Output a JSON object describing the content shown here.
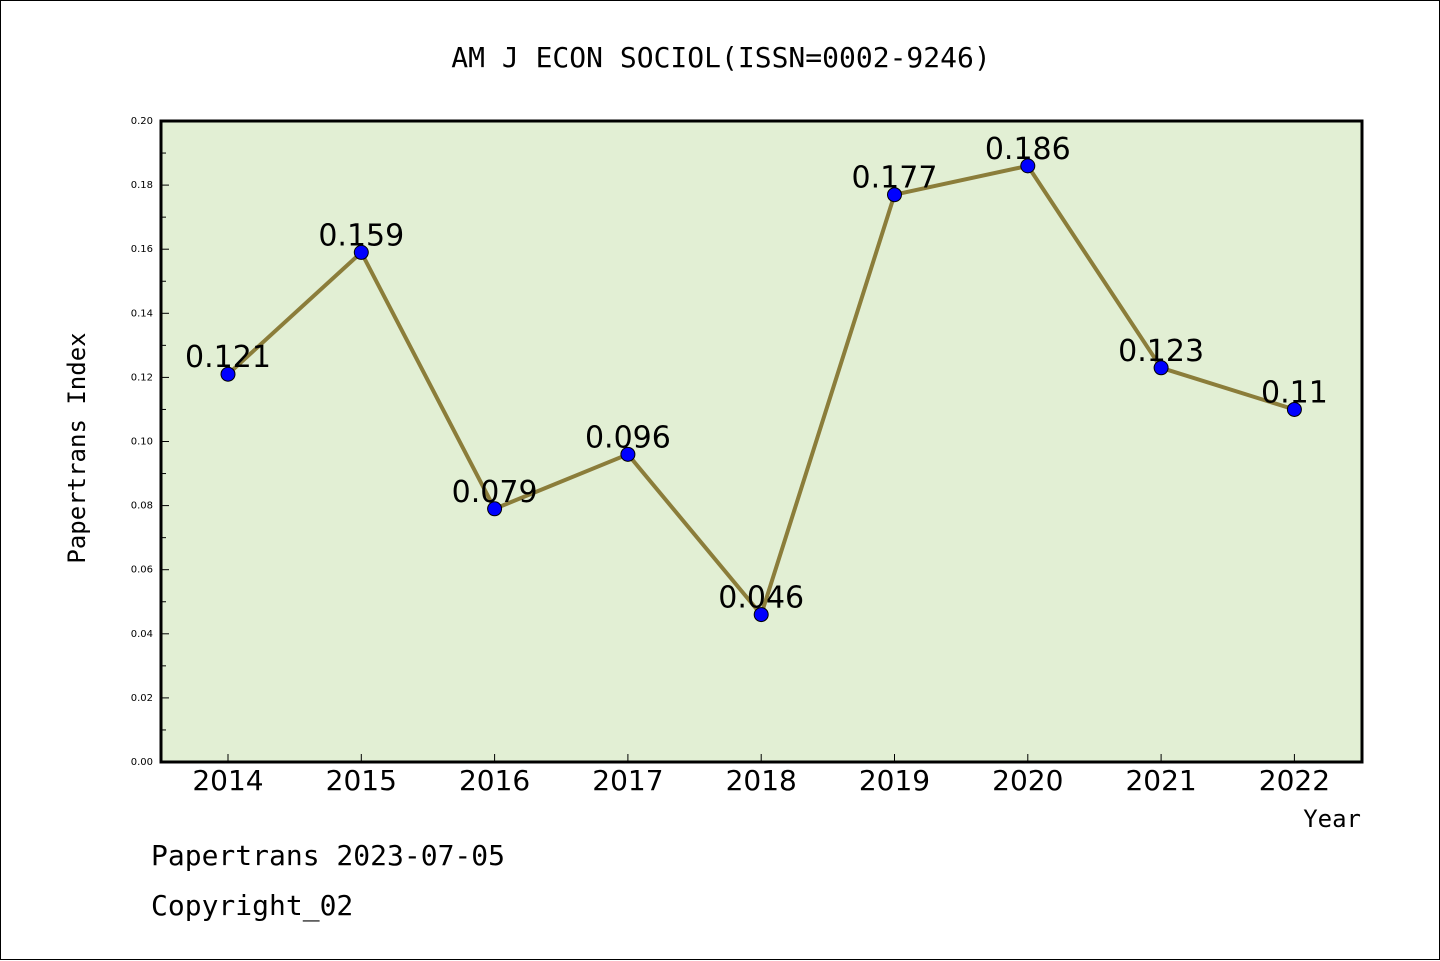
{
  "chart_data": {
    "type": "line",
    "title": "AM J ECON SOCIOL(ISSN=0002-9246)",
    "xlabel": "Year",
    "ylabel": "Papertrans Index",
    "categories": [
      "2014",
      "2015",
      "2016",
      "2017",
      "2018",
      "2019",
      "2020",
      "2021",
      "2022"
    ],
    "series": [
      {
        "values": [
          0.121,
          0.159,
          0.079,
          0.096,
          0.046,
          0.177,
          0.186,
          0.123,
          0.11
        ],
        "data_labels": [
          "0.121",
          "0.159",
          "0.079",
          "0.096",
          "0.046",
          "0.177",
          "0.186",
          "0.123",
          "0.11"
        ],
        "line_color": "#8b7d3a",
        "marker_color": "#0000ff"
      }
    ],
    "ylim": [
      0,
      0.2
    ],
    "yticks": [
      "0.00",
      "0.02",
      "0.04",
      "0.06",
      "0.08",
      "0.10",
      "0.12",
      "0.14",
      "0.16",
      "0.18",
      "0.20"
    ],
    "plot_background": "#e2efd4",
    "grid": false,
    "legend": "none"
  },
  "footer": {
    "line1": "Papertrans 2023-07-05",
    "line2": "Copyright_02"
  }
}
